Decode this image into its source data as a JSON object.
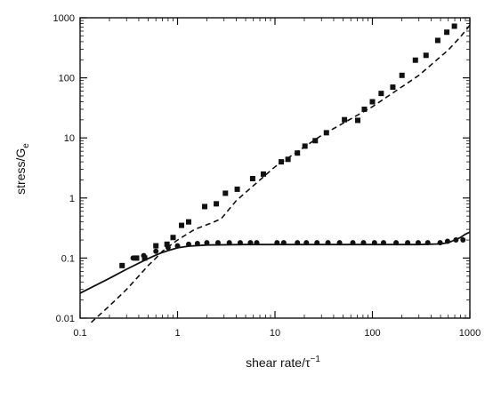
{
  "chart_data": {
    "type": "scatter",
    "title": "",
    "xlabel": "shear rate/τ",
    "xlabel_sup": "−1",
    "ylabel": "stress/G",
    "ylabel_sub": "e",
    "x_scale": "log",
    "y_scale": "log",
    "xlim": [
      0.1,
      1000
    ],
    "ylim": [
      0.01,
      1000
    ],
    "x_ticks": [
      0.1,
      1,
      10,
      100,
      1000
    ],
    "x_tick_labels": [
      "0.1",
      "1",
      "10",
      "100",
      "1000"
    ],
    "y_ticks": [
      0.01,
      0.1,
      1,
      10,
      100,
      1000
    ],
    "y_tick_labels": [
      "0.01",
      "0.1",
      "1",
      "10",
      "100",
      "1000"
    ],
    "grid": false,
    "legend": "none",
    "colors": {
      "ink": "#111111"
    },
    "series": [
      {
        "kind": "points",
        "marker": "square",
        "x": [
          0.27,
          0.38,
          0.46,
          0.6,
          0.78,
          0.9,
          1.1,
          1.3,
          1.9,
          2.5,
          3.1,
          4.1,
          5.9,
          7.6,
          11.6,
          13.6,
          17,
          20.3,
          25.9,
          33.7,
          51.7,
          70.7,
          82.7,
          100,
          123,
          162,
          201,
          276,
          355,
          468,
          580,
          694
        ],
        "y": [
          0.075,
          0.1,
          0.1,
          0.16,
          0.17,
          0.22,
          0.35,
          0.4,
          0.72,
          0.8,
          1.2,
          1.4,
          2.1,
          2.5,
          4.0,
          4.4,
          5.6,
          7.3,
          9.0,
          12.2,
          20.1,
          19.6,
          30.0,
          40.0,
          55.0,
          70.0,
          110.0,
          197.0,
          237.0,
          420.0,
          575.0,
          724.0
        ]
      },
      {
        "kind": "points",
        "marker": "circle",
        "x": [
          0.35,
          0.45,
          0.6,
          0.8,
          1.0,
          1.3,
          1.6,
          2.0,
          2.6,
          3.4,
          4.4,
          5.6,
          6.5,
          10.5,
          12.3,
          17,
          21,
          27,
          35,
          46,
          63,
          81,
          105,
          130,
          175,
          230,
          295,
          370,
          495,
          590,
          720,
          850
        ],
        "y": [
          0.1,
          0.11,
          0.13,
          0.15,
          0.16,
          0.17,
          0.175,
          0.18,
          0.18,
          0.18,
          0.18,
          0.18,
          0.18,
          0.18,
          0.18,
          0.18,
          0.18,
          0.18,
          0.18,
          0.18,
          0.18,
          0.18,
          0.18,
          0.18,
          0.18,
          0.18,
          0.18,
          0.18,
          0.18,
          0.19,
          0.2,
          0.2
        ]
      },
      {
        "kind": "line",
        "style": "solid",
        "x": [
          0.1,
          0.2,
          0.3,
          0.4,
          0.5,
          0.6,
          0.7,
          0.8,
          1.0,
          1.3,
          2.0,
          5.0,
          10,
          50,
          100,
          300,
          500,
          600,
          700,
          800,
          900,
          1000
        ],
        "y": [
          0.026,
          0.046,
          0.065,
          0.082,
          0.098,
          0.112,
          0.124,
          0.133,
          0.148,
          0.158,
          0.165,
          0.168,
          0.168,
          0.168,
          0.168,
          0.168,
          0.172,
          0.18,
          0.2,
          0.22,
          0.25,
          0.27
        ]
      },
      {
        "kind": "line",
        "style": "dashed",
        "x": [
          0.13,
          0.2,
          0.3,
          0.4,
          0.5,
          0.6,
          0.7,
          1.0,
          1.5,
          2.2,
          2.8,
          4.0,
          10,
          30,
          100,
          300,
          600,
          800,
          1000
        ],
        "y": [
          0.0085,
          0.016,
          0.03,
          0.05,
          0.075,
          0.1,
          0.13,
          0.2,
          0.3,
          0.38,
          0.45,
          0.9,
          3.3,
          11,
          33,
          110,
          290,
          480,
          750
        ]
      }
    ]
  }
}
